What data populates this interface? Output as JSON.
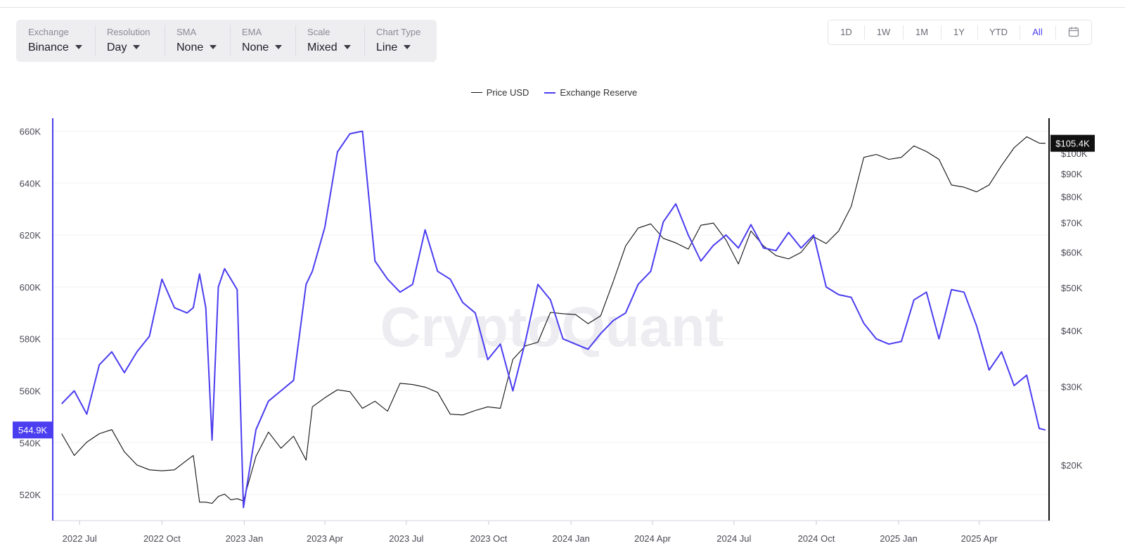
{
  "toolbar": {
    "filters": [
      {
        "label": "Exchange",
        "value": "Binance"
      },
      {
        "label": "Resolution",
        "value": "Day"
      },
      {
        "label": "SMA",
        "value": "None"
      },
      {
        "label": "EMA",
        "value": "None"
      },
      {
        "label": "Scale",
        "value": "Mixed"
      },
      {
        "label": "Chart Type",
        "value": "Line"
      }
    ],
    "ranges": [
      "1D",
      "1W",
      "1M",
      "1Y",
      "YTD",
      "All"
    ],
    "active_range": "All",
    "calendar_icon": "calendar-icon"
  },
  "watermark": "CryptoQuant",
  "colors": {
    "price": "#111111",
    "reserve": "#4b3df0"
  },
  "chart_data": {
    "type": "line",
    "legend": [
      "Price USD",
      "Exchange Reserve"
    ],
    "legend_position": "top-center",
    "x": [
      "2022-06-11",
      "2022-06-25",
      "2022-07-09",
      "2022-07-23",
      "2022-08-06",
      "2022-08-20",
      "2022-09-03",
      "2022-09-17",
      "2022-10-01",
      "2022-10-15",
      "2022-10-29",
      "2022-11-05",
      "2022-11-12",
      "2022-11-19",
      "2022-11-26",
      "2022-12-03",
      "2022-12-10",
      "2022-12-17",
      "2022-12-24",
      "2022-12-31",
      "2023-01-14",
      "2023-01-28",
      "2023-02-11",
      "2023-02-25",
      "2023-03-11",
      "2023-03-18",
      "2023-04-01",
      "2023-04-15",
      "2023-04-29",
      "2023-05-13",
      "2023-05-27",
      "2023-06-10",
      "2023-06-24",
      "2023-07-08",
      "2023-07-22",
      "2023-08-05",
      "2023-08-19",
      "2023-09-02",
      "2023-09-16",
      "2023-09-30",
      "2023-10-14",
      "2023-10-28",
      "2023-11-11",
      "2023-11-25",
      "2023-12-09",
      "2023-12-23",
      "2024-01-06",
      "2024-01-20",
      "2024-02-03",
      "2024-02-17",
      "2024-03-02",
      "2024-03-16",
      "2024-03-30",
      "2024-04-13",
      "2024-04-27",
      "2024-05-11",
      "2024-05-25",
      "2024-06-08",
      "2024-06-22",
      "2024-07-06",
      "2024-07-20",
      "2024-08-03",
      "2024-08-17",
      "2024-08-31",
      "2024-09-14",
      "2024-09-28",
      "2024-10-12",
      "2024-10-26",
      "2024-11-09",
      "2024-11-23",
      "2024-12-07",
      "2024-12-21",
      "2025-01-04",
      "2025-01-18",
      "2025-02-01",
      "2025-02-15",
      "2025-03-01",
      "2025-03-15",
      "2025-03-29",
      "2025-04-12",
      "2025-04-26",
      "2025-05-10",
      "2025-05-24",
      "2025-06-07",
      "2025-06-14"
    ],
    "series": [
      {
        "name": "Price USD",
        "axis": "right",
        "scale": "log",
        "values": [
          23500,
          21000,
          22500,
          23500,
          24000,
          21400,
          20000,
          19500,
          19400,
          19500,
          20500,
          21000,
          16500,
          16500,
          16400,
          17000,
          17200,
          16700,
          16800,
          16600,
          20900,
          23700,
          21800,
          23200,
          20500,
          27000,
          28300,
          29500,
          29200,
          26800,
          27800,
          26400,
          30500,
          30300,
          29900,
          29100,
          26000,
          25900,
          26500,
          27000,
          26800,
          34500,
          37000,
          37700,
          44000,
          43700,
          43500,
          41500,
          43200,
          51500,
          62000,
          68000,
          69500,
          64500,
          63000,
          61000,
          69000,
          69800,
          64000,
          56500,
          67000,
          62000,
          59000,
          58000,
          60000,
          65000,
          62800,
          67000,
          76000,
          98000,
          99500,
          97000,
          98000,
          104000,
          101000,
          97000,
          85000,
          84000,
          82000,
          85000,
          94000,
          103000,
          109000,
          105500,
          105400
        ]
      },
      {
        "name": "Exchange Reserve",
        "axis": "left",
        "scale": "linear",
        "values": [
          555,
          560,
          551,
          570,
          575,
          567,
          575,
          581,
          603,
          592,
          590,
          592,
          605,
          592,
          541,
          600,
          607,
          603,
          599,
          515,
          545,
          556,
          560,
          564,
          601,
          606,
          623,
          652,
          659,
          660,
          610,
          603,
          598,
          601,
          622,
          606,
          603,
          594,
          590,
          572,
          578,
          560,
          579,
          601,
          595,
          580,
          578,
          576,
          582,
          587,
          590,
          601,
          606,
          625,
          632,
          620,
          610,
          616,
          620,
          615,
          624,
          615,
          614,
          621,
          615,
          620,
          600,
          597,
          596,
          586,
          580,
          578,
          579,
          595,
          598,
          580,
          599,
          598,
          585,
          568,
          575,
          562,
          566,
          545.5,
          544.9
        ]
      }
    ],
    "y_left": {
      "ticks": [
        "520K",
        "540K",
        "560K",
        "580K",
        "600K",
        "620K",
        "640K",
        "660K"
      ],
      "range": [
        510000,
        665000
      ]
    },
    "y_right": {
      "ticks": [
        "$20K",
        "$30K",
        "$40K",
        "$50K",
        "$60K",
        "$70K",
        "$80K",
        "$90K",
        "$100K"
      ],
      "range": [
        15000,
        120000
      ],
      "scale": "log"
    },
    "x_ticks": [
      "2022 Jul",
      "2022 Oct",
      "2023 Jan",
      "2023 Apr",
      "2023 Jul",
      "2023 Oct",
      "2024 Jan",
      "2024 Apr",
      "2024 Jul",
      "2024 Oct",
      "2025 Jan",
      "2025 Apr"
    ],
    "last_values": {
      "price": "$105.4K",
      "reserve": "544.9K"
    },
    "grid": true
  }
}
